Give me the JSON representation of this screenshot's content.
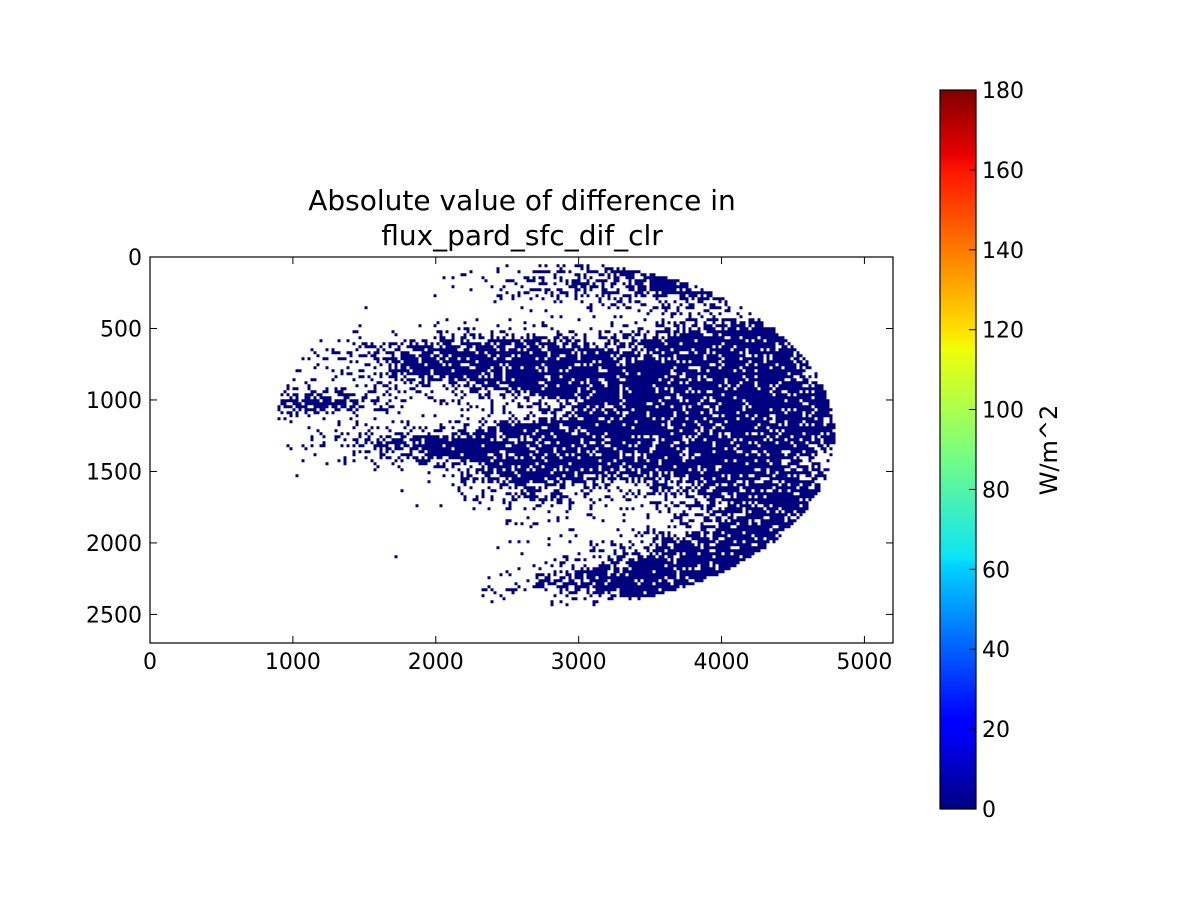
{
  "chart_data": {
    "type": "heatmap",
    "title_line1": "Absolute value of difference in",
    "title_line2": "flux_pard_sfc_dif_clr",
    "xlabel": "",
    "ylabel": "",
    "xlim": [
      0,
      5200
    ],
    "ylim": [
      2700,
      0
    ],
    "x_ticks": [
      "0",
      "1000",
      "2000",
      "3000",
      "4000",
      "5000"
    ],
    "y_ticks": [
      "0",
      "500",
      "1000",
      "1500",
      "2000",
      "2500"
    ],
    "x_tick_values": [
      0,
      1000,
      2000,
      3000,
      4000,
      5000
    ],
    "y_tick_values": [
      0,
      500,
      1000,
      1500,
      2000,
      2500
    ],
    "grid": false,
    "colormap": "jet",
    "colorbar": {
      "label": "W/m^2",
      "range": [
        0,
        180
      ],
      "ticks": [
        "0",
        "20",
        "40",
        "60",
        "80",
        "100",
        "120",
        "140",
        "160",
        "180"
      ],
      "tick_values": [
        0,
        20,
        40,
        60,
        80,
        100,
        120,
        140,
        160,
        180
      ]
    },
    "disk_extent": {
      "x_range": [
        850,
        4780
      ],
      "y_range": [
        30,
        2440
      ]
    },
    "dominant_value": 0,
    "pixel_color": "#00007f"
  }
}
